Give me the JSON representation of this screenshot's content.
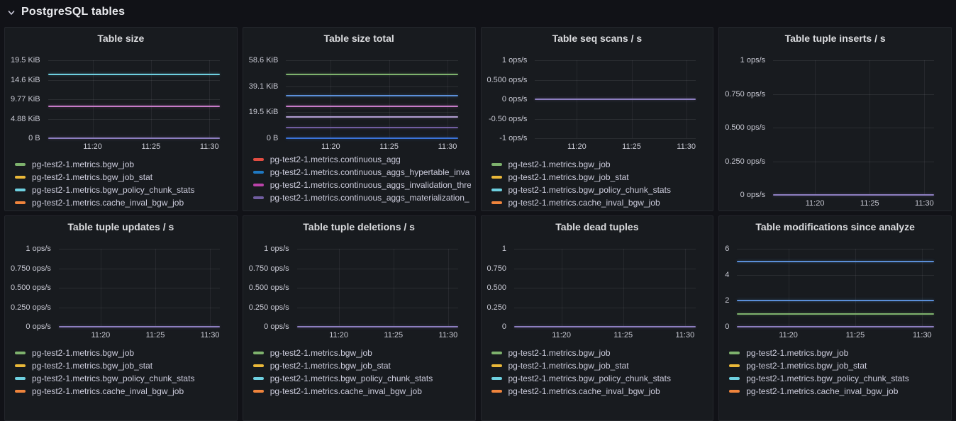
{
  "section": {
    "title": "PostgreSQL tables",
    "collapse_icon": "chevron-down"
  },
  "x_axis_tick_labels": [
    "11:20",
    "11:25",
    "11:30"
  ],
  "panels": [
    {
      "title": "Table size",
      "chart": {
        "type": "line",
        "x_ticks": [
          "11:20",
          "11:25",
          "11:30"
        ],
        "y_ticks": [
          "19.5 KiB",
          "14.6 KiB",
          "9.77 KiB",
          "4.88 KiB",
          "0 B"
        ],
        "ymin": 0,
        "ymax": 20000,
        "unit": "bytes",
        "series": [
          {
            "color": "#6ED0E0",
            "value": 16384
          },
          {
            "color": "#C77BC8",
            "value": 8192
          },
          {
            "color": "#8D7EC0",
            "value": 0
          }
        ]
      },
      "legend": [
        {
          "color": "#7EB26D",
          "label": "pg-test2-1.metrics.bgw_job"
        },
        {
          "color": "#EAB839",
          "label": "pg-test2-1.metrics.bgw_job_stat"
        },
        {
          "color": "#6ED0E0",
          "label": "pg-test2-1.metrics.bgw_policy_chunk_stats"
        },
        {
          "color": "#EF843C",
          "label": "pg-test2-1.metrics.cache_inval_bgw_job"
        }
      ]
    },
    {
      "title": "Table size total",
      "chart": {
        "type": "line",
        "x_ticks": [
          "11:20",
          "11:25",
          "11:30"
        ],
        "y_ticks": [
          "58.6 KiB",
          "39.1 KiB",
          "19.5 KiB",
          "0 B"
        ],
        "ymin": 0,
        "ymax": 60000,
        "unit": "bytes",
        "series": [
          {
            "color": "#7EB26D",
            "value": 49152
          },
          {
            "color": "#5B8FD9",
            "value": 32768
          },
          {
            "color": "#C77BC8",
            "value": 24576
          },
          {
            "color": "#B09CD0",
            "value": 16384
          },
          {
            "color": "#705DA0",
            "value": 8192
          },
          {
            "color": "#3B73D9",
            "value": 0
          }
        ]
      },
      "legend_scrolled": true,
      "legend": [
        {
          "color": "#E24D42",
          "label": "pg-test2-1.metrics.continuous_agg"
        },
        {
          "color": "#1F78C1",
          "label": "pg-test2-1.metrics.continuous_aggs_hypertable_inva"
        },
        {
          "color": "#BA43A9",
          "label": "pg-test2-1.metrics.continuous_aggs_invalidation_thre"
        },
        {
          "color": "#705DA0",
          "label": "pg-test2-1.metrics.continuous_aggs_materialization_"
        }
      ]
    },
    {
      "title": "Table seq scans / s",
      "chart": {
        "type": "line",
        "x_ticks": [
          "11:20",
          "11:25",
          "11:30"
        ],
        "y_ticks": [
          "1 ops/s",
          "0.500 ops/s",
          "0 ops/s",
          "-0.50 ops/s",
          "-1 ops/s"
        ],
        "ymin": -1,
        "ymax": 1,
        "unit": "ops/s",
        "series": [
          {
            "color": "#8D7EC0",
            "value": 0
          }
        ]
      },
      "legend": [
        {
          "color": "#7EB26D",
          "label": "pg-test2-1.metrics.bgw_job"
        },
        {
          "color": "#EAB839",
          "label": "pg-test2-1.metrics.bgw_job_stat"
        },
        {
          "color": "#6ED0E0",
          "label": "pg-test2-1.metrics.bgw_policy_chunk_stats"
        },
        {
          "color": "#EF843C",
          "label": "pg-test2-1.metrics.cache_inval_bgw_job"
        }
      ]
    },
    {
      "title": "Table tuple inserts / s",
      "chart": {
        "type": "line",
        "x_ticks": [
          "11:20",
          "11:25",
          "11:30"
        ],
        "y_ticks": [
          "1 ops/s",
          "0.750 ops/s",
          "0.500 ops/s",
          "0.250 ops/s",
          "0 ops/s"
        ],
        "ymin": 0,
        "ymax": 1,
        "unit": "ops/s",
        "series": [
          {
            "color": "#8D7EC0",
            "value": 0
          }
        ]
      }
    },
    {
      "title": "Table tuple updates / s",
      "chart": {
        "type": "line",
        "x_ticks": [
          "11:20",
          "11:25",
          "11:30"
        ],
        "y_ticks": [
          "1 ops/s",
          "0.750 ops/s",
          "0.500 ops/s",
          "0.250 ops/s",
          "0 ops/s"
        ],
        "ymin": 0,
        "ymax": 1,
        "unit": "ops/s",
        "series": [
          {
            "color": "#8D7EC0",
            "value": 0
          }
        ]
      },
      "legend": [
        {
          "color": "#7EB26D",
          "label": "pg-test2-1.metrics.bgw_job"
        },
        {
          "color": "#EAB839",
          "label": "pg-test2-1.metrics.bgw_job_stat"
        },
        {
          "color": "#6ED0E0",
          "label": "pg-test2-1.metrics.bgw_policy_chunk_stats"
        },
        {
          "color": "#EF843C",
          "label": "pg-test2-1.metrics.cache_inval_bgw_job"
        }
      ]
    },
    {
      "title": "Table tuple deletions / s",
      "chart": {
        "type": "line",
        "x_ticks": [
          "11:20",
          "11:25",
          "11:30"
        ],
        "y_ticks": [
          "1 ops/s",
          "0.750 ops/s",
          "0.500 ops/s",
          "0.250 ops/s",
          "0 ops/s"
        ],
        "ymin": 0,
        "ymax": 1,
        "unit": "ops/s",
        "series": [
          {
            "color": "#8D7EC0",
            "value": 0
          }
        ]
      },
      "legend": [
        {
          "color": "#7EB26D",
          "label": "pg-test2-1.metrics.bgw_job"
        },
        {
          "color": "#EAB839",
          "label": "pg-test2-1.metrics.bgw_job_stat"
        },
        {
          "color": "#6ED0E0",
          "label": "pg-test2-1.metrics.bgw_policy_chunk_stats"
        },
        {
          "color": "#EF843C",
          "label": "pg-test2-1.metrics.cache_inval_bgw_job"
        }
      ]
    },
    {
      "title": "Table dead tuples",
      "chart": {
        "type": "line",
        "x_ticks": [
          "11:20",
          "11:25",
          "11:30"
        ],
        "y_ticks": [
          "1",
          "0.750",
          "0.500",
          "0.250",
          "0"
        ],
        "ymin": 0,
        "ymax": 1,
        "unit": "",
        "series": [
          {
            "color": "#8D7EC0",
            "value": 0
          }
        ]
      },
      "legend": [
        {
          "color": "#7EB26D",
          "label": "pg-test2-1.metrics.bgw_job"
        },
        {
          "color": "#EAB839",
          "label": "pg-test2-1.metrics.bgw_job_stat"
        },
        {
          "color": "#6ED0E0",
          "label": "pg-test2-1.metrics.bgw_policy_chunk_stats"
        },
        {
          "color": "#EF843C",
          "label": "pg-test2-1.metrics.cache_inval_bgw_job"
        }
      ]
    },
    {
      "title": "Table modifications since analyze",
      "chart": {
        "type": "line",
        "x_ticks": [
          "11:20",
          "11:25",
          "11:30"
        ],
        "y_ticks": [
          "6",
          "4",
          "2",
          "0"
        ],
        "ymin": 0,
        "ymax": 6,
        "unit": "",
        "series": [
          {
            "color": "#5B8FD9",
            "value": 5
          },
          {
            "color": "#5B8FD9",
            "value": 2
          },
          {
            "color": "#7EB26D",
            "value": 1
          },
          {
            "color": "#8D7EC0",
            "value": 0
          }
        ]
      },
      "legend": [
        {
          "color": "#7EB26D",
          "label": "pg-test2-1.metrics.bgw_job"
        },
        {
          "color": "#EAB839",
          "label": "pg-test2-1.metrics.bgw_job_stat"
        },
        {
          "color": "#6ED0E0",
          "label": "pg-test2-1.metrics.bgw_policy_chunk_stats"
        },
        {
          "color": "#EF843C",
          "label": "pg-test2-1.metrics.cache_inval_bgw_job"
        }
      ]
    }
  ]
}
